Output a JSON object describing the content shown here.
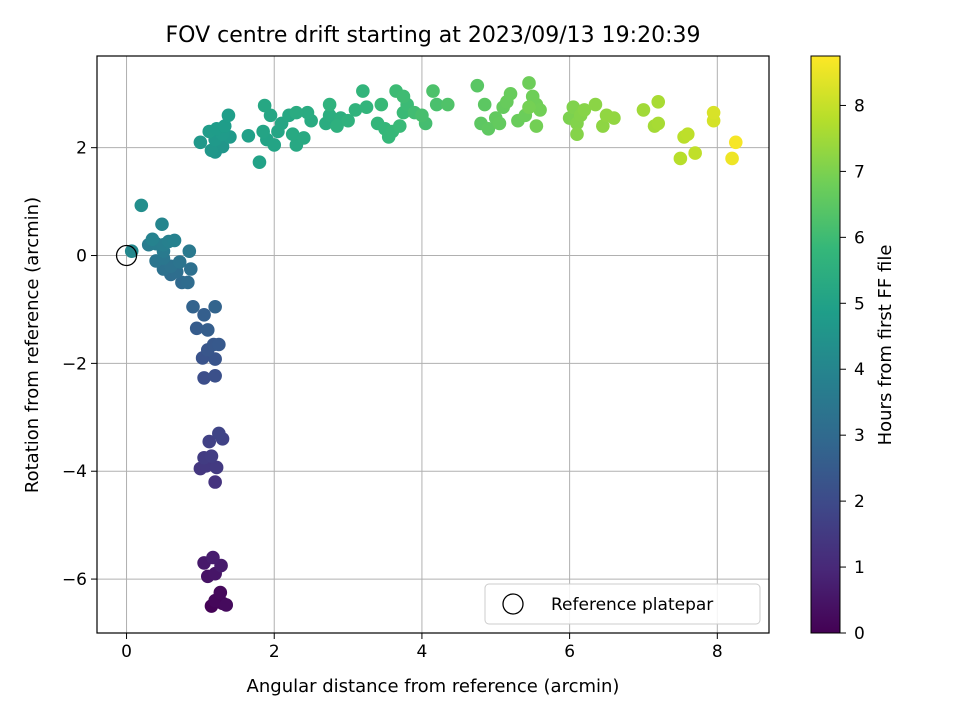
{
  "chart_data": {
    "type": "scatter",
    "title": "FOV centre drift starting at 2023/09/13 19:20:39",
    "xlabel": "Angular distance from reference (arcmin)",
    "ylabel": "Rotation from reference (arcmin)",
    "xlim": [
      -0.4,
      8.7
    ],
    "ylim": [
      -7.0,
      3.7
    ],
    "xticks": [
      0,
      2,
      4,
      6,
      8
    ],
    "yticks": [
      -6,
      -4,
      -2,
      0,
      2
    ],
    "grid": true,
    "legend": {
      "placement": "lower-right",
      "entries": [
        "Reference platepar"
      ]
    },
    "reference_point": {
      "x": 0,
      "y": 0
    },
    "colorbar": {
      "label": "Hours from first FF file",
      "colormap": "viridis",
      "range": [
        0,
        8.75
      ],
      "ticks": [
        0,
        1,
        2,
        3,
        4,
        5,
        6,
        7,
        8
      ]
    },
    "series": [
      {
        "points": [
          {
            "x": 1.15,
            "y": -6.5,
            "c": 0.05
          },
          {
            "x": 1.3,
            "y": -6.45,
            "c": 0.1
          },
          {
            "x": 1.2,
            "y": -6.4,
            "c": 0.15
          },
          {
            "x": 1.27,
            "y": -6.25,
            "c": 0.2
          },
          {
            "x": 1.35,
            "y": -6.48,
            "c": 0.25
          },
          {
            "x": 1.1,
            "y": -5.95,
            "c": 0.45
          },
          {
            "x": 1.2,
            "y": -5.9,
            "c": 0.5
          },
          {
            "x": 1.05,
            "y": -5.7,
            "c": 0.6
          },
          {
            "x": 1.28,
            "y": -5.75,
            "c": 0.65
          },
          {
            "x": 1.17,
            "y": -5.6,
            "c": 0.7
          },
          {
            "x": 1.2,
            "y": -4.2,
            "c": 1.3
          },
          {
            "x": 1.0,
            "y": -3.95,
            "c": 1.4
          },
          {
            "x": 1.08,
            "y": -3.9,
            "c": 1.45
          },
          {
            "x": 1.22,
            "y": -3.93,
            "c": 1.5
          },
          {
            "x": 1.05,
            "y": -3.75,
            "c": 1.55
          },
          {
            "x": 1.15,
            "y": -3.72,
            "c": 1.6
          },
          {
            "x": 1.12,
            "y": -3.45,
            "c": 1.7
          },
          {
            "x": 1.3,
            "y": -3.4,
            "c": 1.75
          },
          {
            "x": 1.25,
            "y": -3.3,
            "c": 1.8
          },
          {
            "x": 1.05,
            "y": -2.27,
            "c": 2.1
          },
          {
            "x": 1.2,
            "y": -2.23,
            "c": 2.15
          },
          {
            "x": 1.03,
            "y": -1.9,
            "c": 2.25
          },
          {
            "x": 1.2,
            "y": -1.92,
            "c": 2.3
          },
          {
            "x": 1.1,
            "y": -1.75,
            "c": 2.35
          },
          {
            "x": 1.18,
            "y": -1.65,
            "c": 2.4
          },
          {
            "x": 1.25,
            "y": -1.65,
            "c": 2.45
          },
          {
            "x": 0.95,
            "y": -1.35,
            "c": 2.55
          },
          {
            "x": 1.1,
            "y": -1.38,
            "c": 2.6
          },
          {
            "x": 1.05,
            "y": -1.1,
            "c": 2.65
          },
          {
            "x": 0.9,
            "y": -0.95,
            "c": 2.75
          },
          {
            "x": 1.2,
            "y": -0.95,
            "c": 2.8
          },
          {
            "x": 0.75,
            "y": -0.5,
            "c": 3.0
          },
          {
            "x": 0.83,
            "y": -0.5,
            "c": 3.05
          },
          {
            "x": 0.6,
            "y": -0.35,
            "c": 3.1
          },
          {
            "x": 0.68,
            "y": -0.3,
            "c": 3.15
          },
          {
            "x": 0.87,
            "y": -0.25,
            "c": 3.2
          },
          {
            "x": 0.5,
            "y": -0.25,
            "c": 3.25
          },
          {
            "x": 0.6,
            "y": -0.2,
            "c": 3.3
          },
          {
            "x": 0.72,
            "y": -0.12,
            "c": 3.35
          },
          {
            "x": 0.4,
            "y": -0.1,
            "c": 3.4
          },
          {
            "x": 0.5,
            "y": -0.05,
            "c": 3.45
          },
          {
            "x": 0.85,
            "y": 0.08,
            "c": 3.55
          },
          {
            "x": 0.5,
            "y": 0.08,
            "c": 3.6
          },
          {
            "x": 0.3,
            "y": 0.2,
            "c": 3.65
          },
          {
            "x": 0.4,
            "y": 0.22,
            "c": 3.7
          },
          {
            "x": 0.5,
            "y": 0.2,
            "c": 3.75
          },
          {
            "x": 0.57,
            "y": 0.26,
            "c": 3.8
          },
          {
            "x": 0.65,
            "y": 0.28,
            "c": 3.85
          },
          {
            "x": 0.35,
            "y": 0.3,
            "c": 3.9
          },
          {
            "x": 0.48,
            "y": 0.58,
            "c": 4.0
          },
          {
            "x": 0.07,
            "y": 0.08,
            "c": 4.1
          },
          {
            "x": 0.2,
            "y": 0.93,
            "c": 4.3
          },
          {
            "x": 1.2,
            "y": 1.92,
            "c": 4.55
          },
          {
            "x": 1.3,
            "y": 2.02,
            "c": 4.6
          },
          {
            "x": 1.15,
            "y": 1.95,
            "c": 4.62
          },
          {
            "x": 1.0,
            "y": 2.1,
            "c": 4.65
          },
          {
            "x": 1.2,
            "y": 2.15,
            "c": 4.7
          },
          {
            "x": 1.4,
            "y": 2.2,
            "c": 4.72
          },
          {
            "x": 1.3,
            "y": 2.25,
            "c": 4.75
          },
          {
            "x": 1.12,
            "y": 2.3,
            "c": 4.78
          },
          {
            "x": 1.22,
            "y": 2.35,
            "c": 4.8
          },
          {
            "x": 1.33,
            "y": 2.4,
            "c": 4.82
          },
          {
            "x": 1.38,
            "y": 2.6,
            "c": 4.85
          },
          {
            "x": 1.65,
            "y": 2.22,
            "c": 4.95
          },
          {
            "x": 1.8,
            "y": 1.73,
            "c": 5.0
          },
          {
            "x": 1.9,
            "y": 2.15,
            "c": 5.05
          },
          {
            "x": 1.85,
            "y": 2.3,
            "c": 5.08
          },
          {
            "x": 2.0,
            "y": 2.05,
            "c": 5.1
          },
          {
            "x": 2.05,
            "y": 2.3,
            "c": 5.12
          },
          {
            "x": 2.1,
            "y": 2.45,
            "c": 5.15
          },
          {
            "x": 1.95,
            "y": 2.6,
            "c": 5.18
          },
          {
            "x": 1.87,
            "y": 2.78,
            "c": 5.2
          },
          {
            "x": 2.2,
            "y": 2.6,
            "c": 5.22
          },
          {
            "x": 2.3,
            "y": 2.05,
            "c": 5.25
          },
          {
            "x": 2.25,
            "y": 2.25,
            "c": 5.28
          },
          {
            "x": 2.4,
            "y": 2.18,
            "c": 5.3
          },
          {
            "x": 2.5,
            "y": 2.5,
            "c": 5.32
          },
          {
            "x": 2.45,
            "y": 2.65,
            "c": 5.35
          },
          {
            "x": 2.3,
            "y": 2.65,
            "c": 5.37
          },
          {
            "x": 2.7,
            "y": 2.45,
            "c": 5.4
          },
          {
            "x": 2.75,
            "y": 2.6,
            "c": 5.45
          },
          {
            "x": 2.9,
            "y": 2.55,
            "c": 5.5
          },
          {
            "x": 2.85,
            "y": 2.4,
            "c": 5.55
          },
          {
            "x": 3.0,
            "y": 2.5,
            "c": 5.6
          },
          {
            "x": 2.75,
            "y": 2.8,
            "c": 5.62
          },
          {
            "x": 3.1,
            "y": 2.7,
            "c": 5.65
          },
          {
            "x": 3.25,
            "y": 2.75,
            "c": 5.7
          },
          {
            "x": 3.2,
            "y": 3.05,
            "c": 5.72
          },
          {
            "x": 3.4,
            "y": 2.45,
            "c": 5.75
          },
          {
            "x": 3.5,
            "y": 2.35,
            "c": 5.8
          },
          {
            "x": 3.55,
            "y": 2.2,
            "c": 5.82
          },
          {
            "x": 3.6,
            "y": 2.3,
            "c": 5.85
          },
          {
            "x": 3.45,
            "y": 2.8,
            "c": 5.88
          },
          {
            "x": 3.7,
            "y": 2.4,
            "c": 5.9
          },
          {
            "x": 3.75,
            "y": 2.65,
            "c": 5.92
          },
          {
            "x": 3.8,
            "y": 2.8,
            "c": 5.95
          },
          {
            "x": 3.65,
            "y": 3.05,
            "c": 5.97
          },
          {
            "x": 3.75,
            "y": 2.95,
            "c": 6.0
          },
          {
            "x": 3.9,
            "y": 2.65,
            "c": 6.05
          },
          {
            "x": 4.05,
            "y": 2.45,
            "c": 6.1
          },
          {
            "x": 4.0,
            "y": 2.6,
            "c": 6.15
          },
          {
            "x": 4.2,
            "y": 2.8,
            "c": 6.2
          },
          {
            "x": 4.15,
            "y": 3.05,
            "c": 6.25
          },
          {
            "x": 4.35,
            "y": 2.8,
            "c": 6.3
          },
          {
            "x": 4.75,
            "y": 3.15,
            "c": 6.45
          },
          {
            "x": 4.85,
            "y": 2.8,
            "c": 6.5
          },
          {
            "x": 4.8,
            "y": 2.45,
            "c": 6.52
          },
          {
            "x": 4.9,
            "y": 2.35,
            "c": 6.55
          },
          {
            "x": 5.0,
            "y": 2.55,
            "c": 6.6
          },
          {
            "x": 5.05,
            "y": 2.45,
            "c": 6.62
          },
          {
            "x": 5.1,
            "y": 2.75,
            "c": 6.65
          },
          {
            "x": 5.15,
            "y": 2.85,
            "c": 6.68
          },
          {
            "x": 5.2,
            "y": 3.0,
            "c": 6.7
          },
          {
            "x": 5.3,
            "y": 2.5,
            "c": 6.72
          },
          {
            "x": 5.4,
            "y": 2.6,
            "c": 6.75
          },
          {
            "x": 5.45,
            "y": 3.2,
            "c": 6.78
          },
          {
            "x": 5.5,
            "y": 2.95,
            "c": 6.8
          },
          {
            "x": 5.55,
            "y": 2.8,
            "c": 6.82
          },
          {
            "x": 5.6,
            "y": 2.7,
            "c": 6.85
          },
          {
            "x": 5.55,
            "y": 2.4,
            "c": 6.88
          },
          {
            "x": 5.45,
            "y": 2.75,
            "c": 6.9
          },
          {
            "x": 6.0,
            "y": 2.55,
            "c": 7.0
          },
          {
            "x": 6.05,
            "y": 2.75,
            "c": 7.05
          },
          {
            "x": 6.1,
            "y": 2.45,
            "c": 7.08
          },
          {
            "x": 6.15,
            "y": 2.6,
            "c": 7.1
          },
          {
            "x": 6.1,
            "y": 2.25,
            "c": 7.12
          },
          {
            "x": 6.2,
            "y": 2.7,
            "c": 7.15
          },
          {
            "x": 6.35,
            "y": 2.8,
            "c": 7.2
          },
          {
            "x": 6.45,
            "y": 2.4,
            "c": 7.25
          },
          {
            "x": 6.5,
            "y": 2.6,
            "c": 7.28
          },
          {
            "x": 6.6,
            "y": 2.55,
            "c": 7.3
          },
          {
            "x": 7.0,
            "y": 2.7,
            "c": 7.5
          },
          {
            "x": 7.15,
            "y": 2.4,
            "c": 7.55
          },
          {
            "x": 7.2,
            "y": 2.45,
            "c": 7.58
          },
          {
            "x": 7.2,
            "y": 2.85,
            "c": 7.6
          },
          {
            "x": 7.5,
            "y": 1.8,
            "c": 7.8
          },
          {
            "x": 7.55,
            "y": 2.2,
            "c": 7.85
          },
          {
            "x": 7.6,
            "y": 2.25,
            "c": 7.88
          },
          {
            "x": 7.7,
            "y": 1.9,
            "c": 7.92
          },
          {
            "x": 7.95,
            "y": 2.5,
            "c": 8.2
          },
          {
            "x": 7.95,
            "y": 2.65,
            "c": 8.25
          },
          {
            "x": 8.2,
            "y": 1.8,
            "c": 8.55
          },
          {
            "x": 8.25,
            "y": 2.1,
            "c": 8.65
          }
        ]
      }
    ]
  }
}
